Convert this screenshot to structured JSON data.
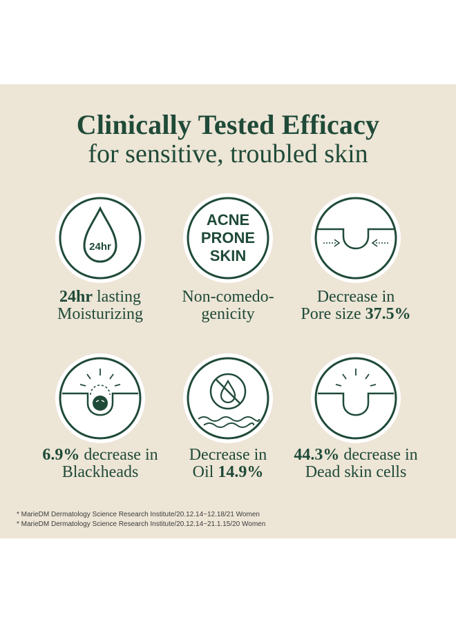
{
  "heading": {
    "title": "Clinically Tested Efficacy",
    "subtitle": "for sensitive, troubled skin"
  },
  "theme": {
    "accent": "#1f4a38",
    "background": "#ede5d6",
    "badge": "#ffffff"
  },
  "items": [
    {
      "icon": "water-drop-24hr-icon",
      "icon_text": "24hr",
      "line1_bold": "24hr",
      "line1_rest": " lasting",
      "line2": "Moisturizing"
    },
    {
      "icon": "acne-prone-skin-icon",
      "icon_lines": [
        "ACNE",
        "PRONE",
        "SKIN"
      ],
      "line1": "Non-comedo-",
      "line2": "genicity"
    },
    {
      "icon": "pore-shrink-icon",
      "line1": "Decrease in",
      "line2_rest": "Pore size ",
      "line2_bold": "37.5%"
    },
    {
      "icon": "blackhead-icon",
      "line1_bold": "6.9%",
      "line1_rest": " decrease in",
      "line2": "Blackheads"
    },
    {
      "icon": "no-oil-drop-icon",
      "line1": "Decrease in",
      "line2_rest": "Oil ",
      "line2_bold": "14.9%"
    },
    {
      "icon": "dead-skin-icon",
      "line1_bold": "44.3%",
      "line1_rest": " decrease in",
      "line2": "Dead skin cells"
    }
  ],
  "footnotes": [
    "* MarieDM Dermatology Science Research Institute/20.12.14~12.18/21 Women",
    "* MarieDM Dermatology Science Research Institute/20.12.14~21.1.15/20 Women"
  ]
}
